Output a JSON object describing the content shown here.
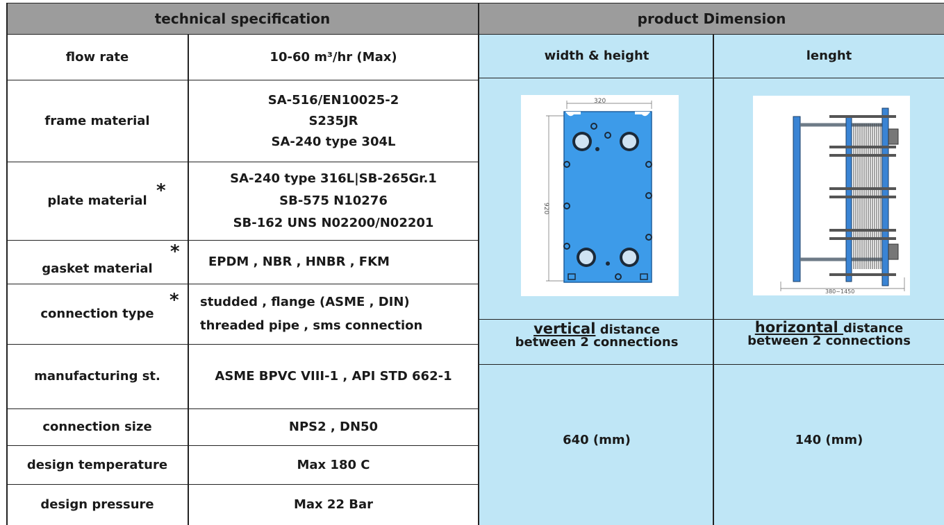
{
  "headers": {
    "technical": "technical specification",
    "dimension": "product Dimension"
  },
  "specs": [
    {
      "label": "flow rate",
      "value_lines": [
        "10-60 m³/hr (Max)"
      ]
    },
    {
      "label": "frame material",
      "value_lines": [
        "SA-516/EN10025-2",
        "S235JR",
        "SA-240 type 304L"
      ]
    },
    {
      "label": "plate material",
      "value_lines": [
        "SA-240 type 316L|SB-265Gr.1",
        "SB-575 N10276",
        "SB-162 UNS N02200/N02201"
      ]
    },
    {
      "label": "gasket material",
      "value_lines": [
        "EPDM , NBR , HNBR , FKM"
      ]
    },
    {
      "label": "connection type",
      "value_lines": [
        "studded , flange (ASME , DIN)",
        "threaded pipe , sms connection"
      ]
    },
    {
      "label": "manufacturing st.",
      "value_lines": [
        "ASME BPVC VIII-1 , API STD 662-1"
      ]
    },
    {
      "label": "connection size",
      "value_lines": [
        "NPS2 , DN50"
      ]
    },
    {
      "label": "design temperature",
      "value_lines": [
        "Max 180 C"
      ]
    },
    {
      "label": "design pressure",
      "value_lines": [
        "Max 22 Bar"
      ]
    }
  ],
  "asterisk": "*",
  "dimension": {
    "col1_title": "width & height",
    "col2_title": "lenght",
    "vertical_word": "vertical",
    "horizontal_word": "horizontal ",
    "distance_word": " distance",
    "between": "between 2 connections",
    "vertical_value": "640 (mm)",
    "horizontal_value": "140 (mm)",
    "plate_width_label": "320",
    "plate_height_label": "920",
    "length_label": "380~1450"
  },
  "colors": {
    "header_bg": "#9c9c9c",
    "dimension_bg": "#bfe6f6",
    "plate_blue": "#3d9be9",
    "frame_blue": "#3a84d4"
  }
}
